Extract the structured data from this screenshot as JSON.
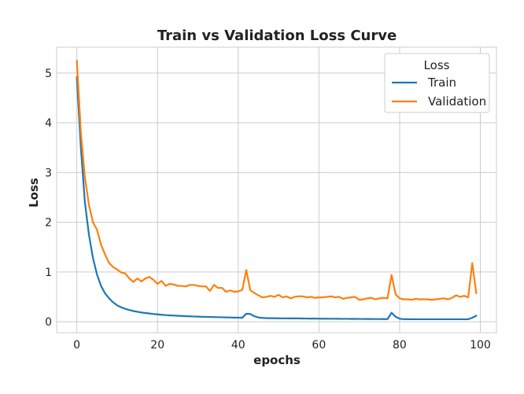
{
  "chart_data": {
    "type": "line",
    "title": "Train vs Validation Loss Curve",
    "xlabel": "epochs",
    "ylabel": "Loss",
    "xlim": [
      -5,
      104
    ],
    "ylim": [
      -0.22,
      5.52
    ],
    "xticks": [
      0,
      20,
      40,
      60,
      80,
      100
    ],
    "yticks": [
      0,
      1,
      2,
      3,
      4,
      5
    ],
    "grid": true,
    "legend": {
      "title": "Loss",
      "placement": "top-right"
    },
    "series": [
      {
        "name": "Train",
        "color": "#1f77b4",
        "x": [
          0,
          1,
          2,
          3,
          4,
          5,
          6,
          7,
          8,
          9,
          10,
          11,
          12,
          13,
          14,
          15,
          16,
          17,
          18,
          19,
          20,
          21,
          22,
          23,
          24,
          25,
          26,
          27,
          28,
          29,
          30,
          31,
          32,
          33,
          34,
          35,
          36,
          37,
          38,
          39,
          40,
          41,
          42,
          43,
          44,
          45,
          46,
          47,
          48,
          49,
          50,
          51,
          52,
          53,
          54,
          55,
          56,
          57,
          58,
          59,
          60,
          61,
          62,
          63,
          64,
          65,
          66,
          67,
          68,
          69,
          70,
          71,
          72,
          73,
          74,
          75,
          76,
          77,
          78,
          79,
          80,
          81,
          82,
          83,
          84,
          85,
          86,
          87,
          88,
          89,
          90,
          91,
          92,
          93,
          94,
          95,
          96,
          97,
          98,
          99
        ],
        "y": [
          4.92,
          3.5,
          2.4,
          1.75,
          1.28,
          0.95,
          0.72,
          0.57,
          0.47,
          0.39,
          0.33,
          0.29,
          0.26,
          0.235,
          0.215,
          0.2,
          0.185,
          0.175,
          0.165,
          0.155,
          0.148,
          0.14,
          0.133,
          0.128,
          0.124,
          0.12,
          0.116,
          0.112,
          0.108,
          0.105,
          0.102,
          0.099,
          0.097,
          0.095,
          0.093,
          0.091,
          0.089,
          0.087,
          0.085,
          0.083,
          0.081,
          0.08,
          0.16,
          0.155,
          0.11,
          0.085,
          0.077,
          0.073,
          0.071,
          0.07,
          0.069,
          0.068,
          0.068,
          0.067,
          0.066,
          0.066,
          0.065,
          0.064,
          0.063,
          0.063,
          0.062,
          0.061,
          0.061,
          0.06,
          0.06,
          0.059,
          0.058,
          0.058,
          0.057,
          0.057,
          0.056,
          0.056,
          0.055,
          0.055,
          0.054,
          0.054,
          0.053,
          0.053,
          0.18,
          0.1,
          0.06,
          0.052,
          0.051,
          0.05,
          0.05,
          0.05,
          0.05,
          0.05,
          0.05,
          0.05,
          0.05,
          0.05,
          0.05,
          0.05,
          0.05,
          0.05,
          0.05,
          0.05,
          0.08,
          0.12
        ]
      },
      {
        "name": "Validation",
        "color": "#ff7f0e",
        "x": [
          0,
          1,
          2,
          3,
          4,
          5,
          6,
          7,
          8,
          9,
          10,
          11,
          12,
          13,
          14,
          15,
          16,
          17,
          18,
          19,
          20,
          21,
          22,
          23,
          24,
          25,
          26,
          27,
          28,
          29,
          30,
          31,
          32,
          33,
          34,
          35,
          36,
          37,
          38,
          39,
          40,
          41,
          42,
          43,
          44,
          45,
          46,
          47,
          48,
          49,
          50,
          51,
          52,
          53,
          54,
          55,
          56,
          57,
          58,
          59,
          60,
          61,
          62,
          63,
          64,
          65,
          66,
          67,
          68,
          69,
          70,
          71,
          72,
          73,
          74,
          75,
          76,
          77,
          78,
          79,
          80,
          81,
          82,
          83,
          84,
          85,
          86,
          87,
          88,
          89,
          90,
          91,
          92,
          93,
          94,
          95,
          96,
          97,
          98,
          99
        ],
        "y": [
          5.25,
          3.8,
          2.9,
          2.35,
          2.0,
          1.85,
          1.55,
          1.35,
          1.18,
          1.1,
          1.05,
          0.99,
          0.97,
          0.87,
          0.8,
          0.87,
          0.81,
          0.87,
          0.9,
          0.84,
          0.76,
          0.82,
          0.72,
          0.76,
          0.75,
          0.72,
          0.72,
          0.71,
          0.74,
          0.74,
          0.72,
          0.71,
          0.71,
          0.62,
          0.74,
          0.68,
          0.68,
          0.6,
          0.63,
          0.6,
          0.61,
          0.64,
          1.04,
          0.63,
          0.58,
          0.53,
          0.49,
          0.5,
          0.52,
          0.5,
          0.54,
          0.49,
          0.51,
          0.47,
          0.5,
          0.51,
          0.51,
          0.49,
          0.5,
          0.48,
          0.49,
          0.49,
          0.5,
          0.51,
          0.49,
          0.5,
          0.46,
          0.48,
          0.49,
          0.5,
          0.44,
          0.45,
          0.47,
          0.48,
          0.45,
          0.47,
          0.48,
          0.47,
          0.94,
          0.55,
          0.47,
          0.45,
          0.45,
          0.44,
          0.46,
          0.45,
          0.45,
          0.45,
          0.44,
          0.45,
          0.46,
          0.47,
          0.45,
          0.48,
          0.53,
          0.5,
          0.52,
          0.49,
          1.18,
          0.57
        ]
      }
    ]
  }
}
